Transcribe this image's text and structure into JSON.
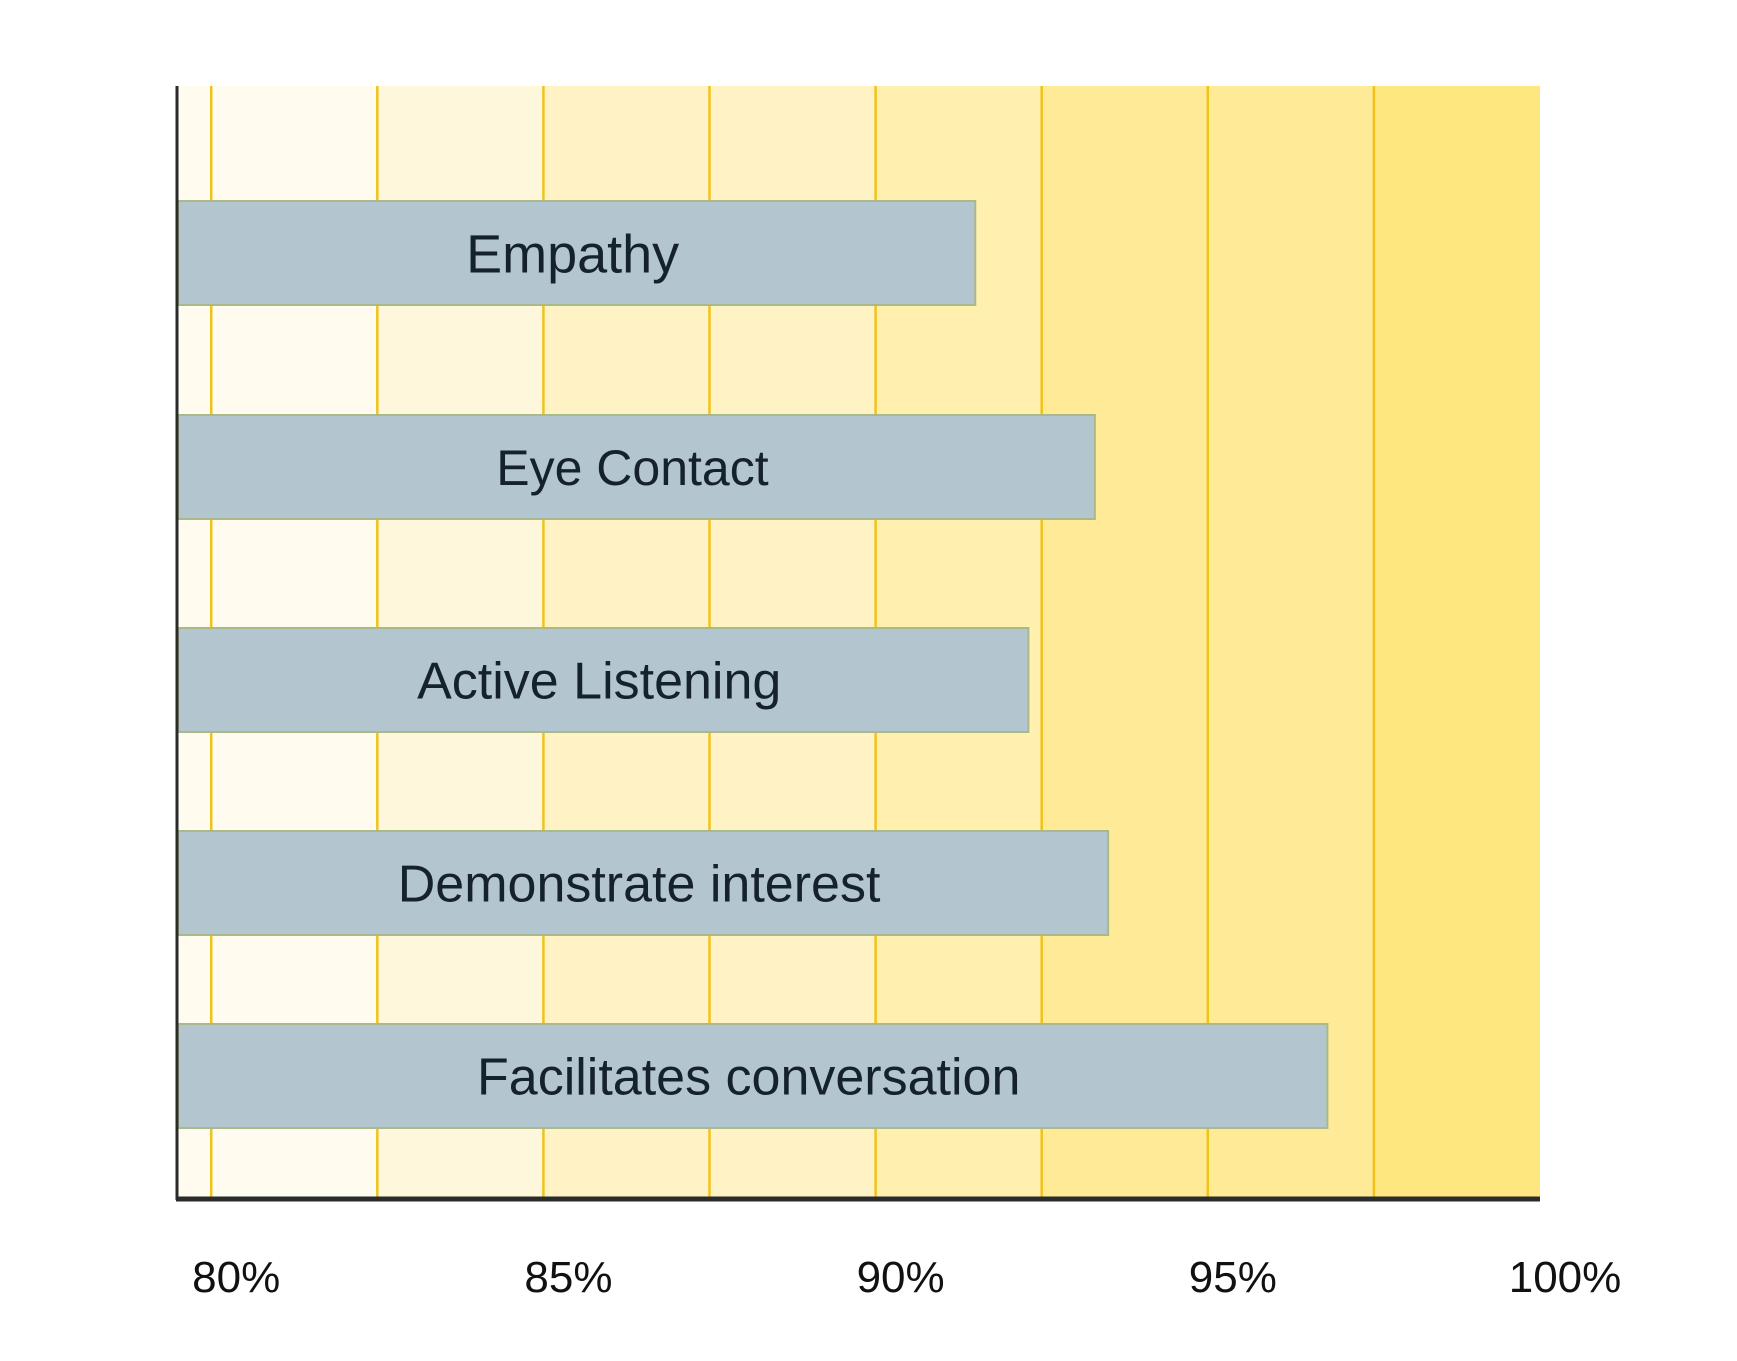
{
  "chart_data": {
    "type": "bar",
    "orientation": "horizontal",
    "categories": [
      "Empathy",
      "Eye Contact",
      "Active Listening",
      "Demonstrate interest",
      "Facilitates conversation"
    ],
    "values": [
      91.5,
      93.3,
      92.3,
      93.5,
      96.8
    ],
    "xlim": [
      79.5,
      100
    ],
    "x_ticks": [
      80,
      85,
      90,
      95,
      100
    ],
    "x_tick_labels": [
      "80%",
      "85%",
      "90%",
      "95%",
      "100%"
    ],
    "title": "",
    "xlabel": "",
    "ylabel": "",
    "grid": true,
    "legend": "none",
    "colors": {
      "bar": "#b3c6cf",
      "bar_edge": "#a9b98a",
      "gridline": "#f2c21a",
      "axis": "#2b2b2b",
      "band_shades": [
        "#fffbef",
        "#fff7dc",
        "#fff3c6",
        "#fff0b0",
        "#ffeb97",
        "#ffe77f"
      ]
    }
  }
}
